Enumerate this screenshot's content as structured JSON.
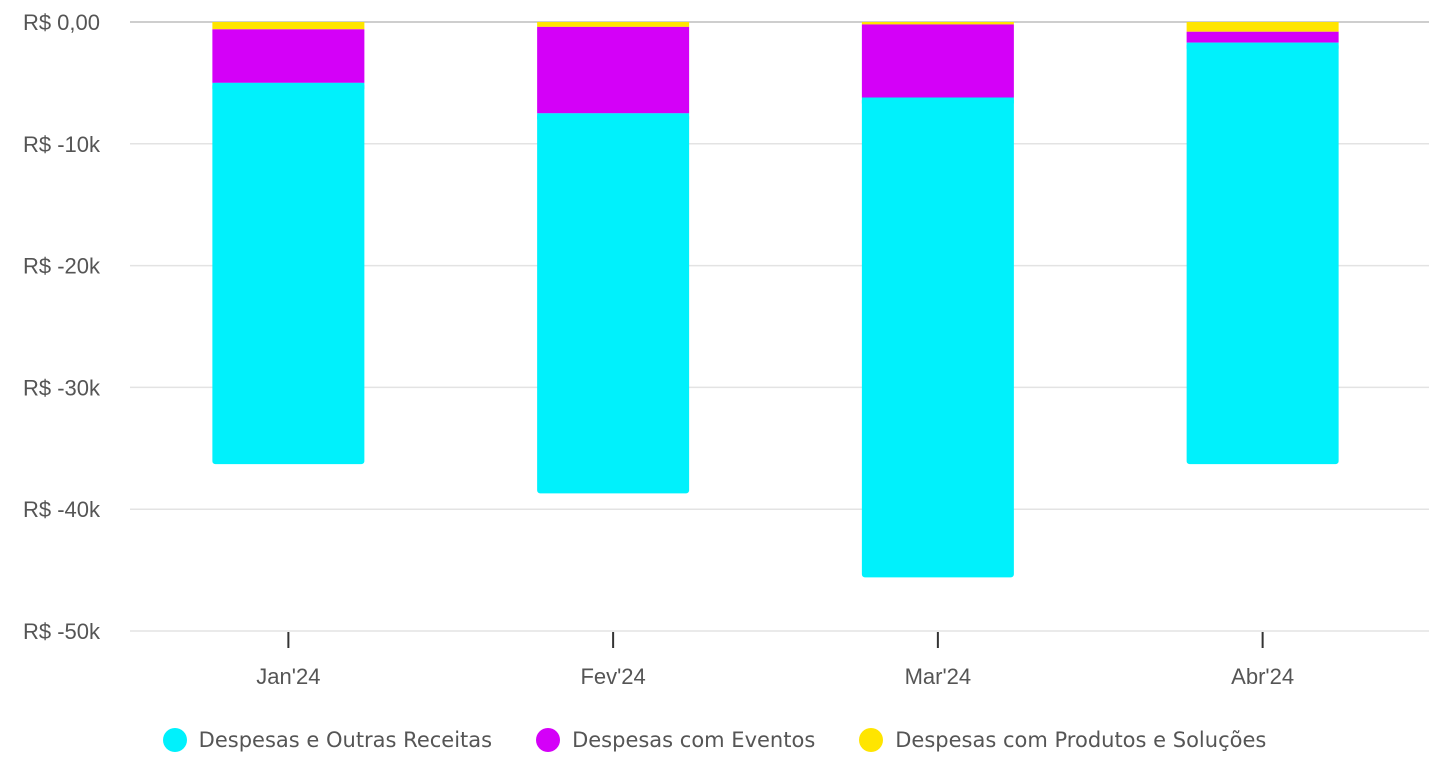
{
  "chart_data": {
    "type": "bar",
    "stacked": true,
    "categories": [
      "Jan'24",
      "Fev'24",
      "Mar'24",
      "Abr'24"
    ],
    "series": [
      {
        "name": "Despesas e Outras Receitas",
        "color": "#00F1FC",
        "values": [
          -31300,
          -31200,
          -39400,
          -34600
        ]
      },
      {
        "name": "Despesas com Eventos",
        "color": "#D400F8",
        "values": [
          -4400,
          -7100,
          -6000,
          -900
        ]
      },
      {
        "name": "Despesas com Produtos e Soluções",
        "color": "#FFE500",
        "values": [
          -600,
          -400,
          -200,
          -800
        ]
      }
    ],
    "y_ticks": [
      {
        "value": 0,
        "label": "R$ 0,00"
      },
      {
        "value": -10000,
        "label": "R$ -10k"
      },
      {
        "value": -20000,
        "label": "R$ -20k"
      },
      {
        "value": -30000,
        "label": "R$ -30k"
      },
      {
        "value": -40000,
        "label": "R$ -40k"
      },
      {
        "value": -50000,
        "label": "R$ -50k"
      }
    ],
    "ylim": [
      -50000,
      0
    ],
    "grid": true,
    "legend_position": "bottom-center"
  }
}
